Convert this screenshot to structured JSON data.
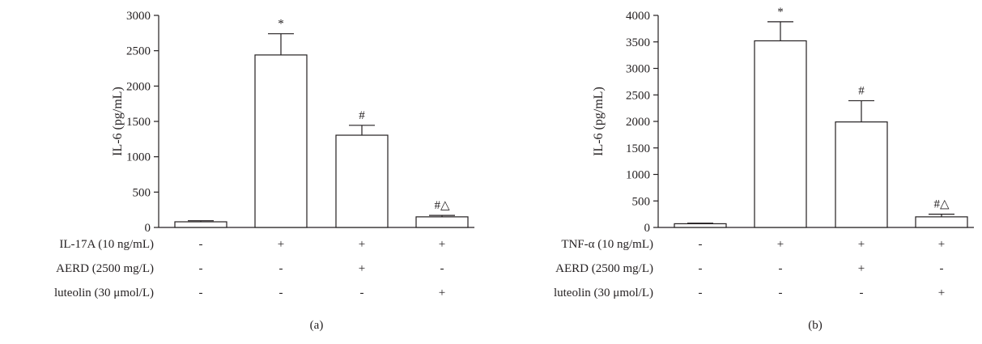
{
  "chart_data": [
    {
      "type": "bar",
      "ylabel": "IL-6 (pg/mL)",
      "ylim": [
        0,
        3000
      ],
      "yticks": [
        "0",
        "500",
        "1000",
        "1500",
        "2000",
        "2500",
        "3000"
      ],
      "values": [
        80,
        2440,
        1305,
        150
      ],
      "errors": [
        15,
        300,
        140,
        20
      ],
      "markers": [
        "",
        "*",
        "#",
        "#△"
      ],
      "conditions": [
        {
          "label": "IL-17A (10 ng/mL)",
          "signs": [
            "-",
            "+",
            "+",
            "+"
          ]
        },
        {
          "label": "AERD (2500 mg/L)",
          "signs": [
            "-",
            "-",
            "+",
            "-"
          ]
        },
        {
          "label": "luteolin (30 μmol/L)",
          "signs": [
            "-",
            "-",
            "-",
            "+"
          ]
        }
      ],
      "caption": "(a)"
    },
    {
      "type": "bar",
      "ylabel": "IL-6 (pg/mL)",
      "ylim": [
        0,
        4000
      ],
      "yticks": [
        "0",
        "500",
        "1000",
        "1500",
        "2000",
        "2500",
        "3000",
        "3500",
        "4000"
      ],
      "values": [
        70,
        3520,
        1990,
        200
      ],
      "errors": [
        10,
        360,
        400,
        50
      ],
      "markers": [
        "",
        "*",
        "#",
        "#△"
      ],
      "conditions": [
        {
          "label": "TNF-α (10 ng/mL)",
          "signs": [
            "-",
            "+",
            "+",
            "+"
          ]
        },
        {
          "label": "AERD (2500 mg/L)",
          "signs": [
            "-",
            "-",
            "+",
            "-"
          ]
        },
        {
          "label": "luteolin (30 μmol/L)",
          "signs": [
            "-",
            "-",
            "-",
            "+"
          ]
        }
      ],
      "caption": "(b)"
    }
  ]
}
